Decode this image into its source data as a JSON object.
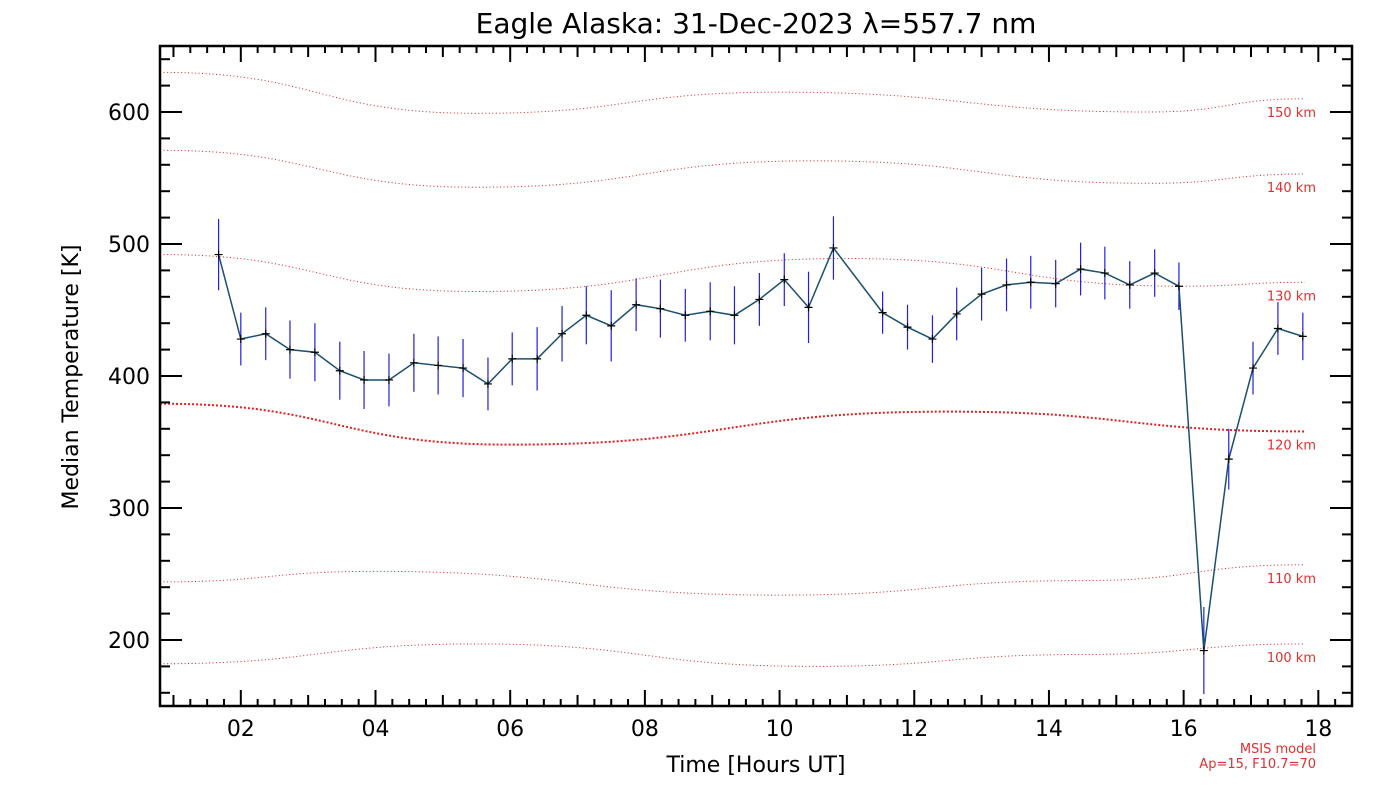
{
  "chart_data": {
    "type": "line",
    "title": "Eagle Alaska: 31-Dec-2023 λ=557.7 nm",
    "xlabel": "Time [Hours UT]",
    "ylabel": "Median Temperature [K]",
    "xlim": [
      0.8,
      18.5
    ],
    "ylim": [
      150,
      650
    ],
    "x_ticks": [
      2,
      4,
      6,
      8,
      10,
      12,
      14,
      16,
      18
    ],
    "x_tick_labels": [
      "02",
      "04",
      "06",
      "08",
      "10",
      "12",
      "14",
      "16",
      "18"
    ],
    "y_ticks": [
      200,
      300,
      400,
      500,
      600
    ],
    "y_tick_labels": [
      "200",
      "300",
      "400",
      "500",
      "600"
    ],
    "series": [
      {
        "name": "Median Temperature",
        "color": "#1a4f6e",
        "errorbar_color": "#2020e0",
        "x": [
          1.67,
          2.0,
          2.37,
          2.73,
          3.1,
          3.47,
          3.83,
          4.2,
          4.57,
          4.93,
          5.3,
          5.67,
          6.03,
          6.4,
          6.77,
          7.13,
          7.5,
          7.87,
          8.23,
          8.6,
          8.97,
          9.33,
          9.7,
          10.07,
          10.43,
          10.8,
          11.53,
          11.9,
          12.27,
          12.63,
          13.0,
          13.37,
          13.73,
          14.1,
          14.47,
          14.83,
          15.2,
          15.57,
          15.93,
          16.3,
          16.67,
          17.03,
          17.4,
          17.77
        ],
        "y": [
          492,
          428,
          432,
          420,
          418,
          404,
          397,
          397,
          410,
          408,
          406,
          394,
          413,
          413,
          432,
          446,
          438,
          454,
          451,
          446,
          449,
          446,
          458,
          473,
          452,
          497,
          448,
          437,
          428,
          447,
          462,
          469,
          471,
          470,
          481,
          478,
          469,
          478,
          468,
          192,
          337,
          406,
          436,
          430
        ],
        "err": [
          27,
          20,
          20,
          22,
          22,
          22,
          22,
          20,
          22,
          22,
          22,
          20,
          20,
          24,
          21,
          22,
          27,
          20,
          22,
          20,
          22,
          22,
          20,
          20,
          27,
          24,
          16,
          17,
          18,
          20,
          20,
          20,
          20,
          18,
          20,
          20,
          18,
          18,
          18,
          33,
          23,
          20,
          20,
          18
        ]
      }
    ],
    "model_lines": [
      {
        "label": "150 km",
        "x": [
          0.8,
          5.5,
          10.0,
          15.5,
          17.8
        ],
        "y": [
          630,
          599,
          615,
          600,
          610
        ]
      },
      {
        "label": "140 km",
        "x": [
          0.8,
          5.5,
          10.5,
          15.5,
          17.8
        ],
        "y": [
          571,
          543,
          563,
          546,
          553
        ]
      },
      {
        "label": "130 km",
        "x": [
          0.8,
          5.5,
          11.0,
          16.0,
          17.8
        ],
        "y": [
          492,
          464,
          489,
          468,
          471
        ]
      },
      {
        "label": "120 km",
        "x": [
          0.8,
          6.0,
          12.5,
          17.8
        ],
        "y": [
          379,
          348,
          373,
          358
        ]
      },
      {
        "label": "110 km",
        "x": [
          0.8,
          4.0,
          10.0,
          14.5,
          17.8
        ],
        "y": [
          244,
          252,
          234,
          245,
          257
        ]
      },
      {
        "label": "100 km",
        "x": [
          0.8,
          5.5,
          10.5,
          14.5,
          17.8
        ],
        "y": [
          182,
          197,
          180,
          189,
          197
        ]
      }
    ],
    "annotations": [
      "MSIS model",
      "Ap=15, F10.7=70"
    ]
  }
}
